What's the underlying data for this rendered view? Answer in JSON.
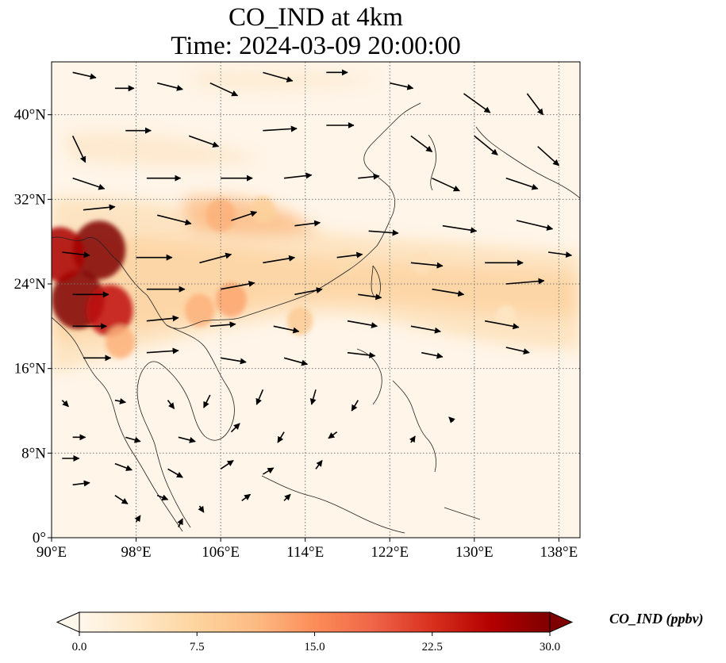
{
  "title": {
    "line1": "CO_IND at 4km",
    "line2": "Time: 2024-03-09 20:00:00"
  },
  "map": {
    "extent": {
      "lon": [
        90,
        140
      ],
      "lat": [
        0,
        45
      ]
    },
    "gridlines": true,
    "lon_ticks": [
      {
        "value": 90,
        "label": "90°E"
      },
      {
        "value": 98,
        "label": "98°E"
      },
      {
        "value": 106,
        "label": "106°E"
      },
      {
        "value": 114,
        "label": "114°E"
      },
      {
        "value": 122,
        "label": "122°E"
      },
      {
        "value": 130,
        "label": "130°E"
      },
      {
        "value": 138,
        "label": "138°E"
      }
    ],
    "lat_ticks": [
      {
        "value": 0,
        "label": "0°"
      },
      {
        "value": 8,
        "label": "8°N"
      },
      {
        "value": 16,
        "label": "16°N"
      },
      {
        "value": 24,
        "label": "24°N"
      },
      {
        "value": 32,
        "label": "32°N"
      },
      {
        "value": 40,
        "label": "40°N"
      }
    ],
    "field": "CO_IND",
    "hotspots": [
      {
        "lon": 94.5,
        "lat": 27.2,
        "value": 30
      },
      {
        "lon": 92.5,
        "lat": 22.5,
        "value": 30
      },
      {
        "lon": 95.5,
        "lat": 21.5,
        "value": 25
      },
      {
        "lon": 90.8,
        "lat": 26.8,
        "value": 27
      },
      {
        "lon": 96.5,
        "lat": 18.5,
        "value": 12
      },
      {
        "lon": 104,
        "lat": 21.5,
        "value": 12
      },
      {
        "lon": 107,
        "lat": 22.5,
        "value": 13
      },
      {
        "lon": 106,
        "lat": 30.5,
        "value": 12
      },
      {
        "lon": 110,
        "lat": 31,
        "value": 8
      },
      {
        "lon": 113.5,
        "lat": 20.5,
        "value": 9
      },
      {
        "lon": 118,
        "lat": 26,
        "value": 6
      },
      {
        "lon": 125,
        "lat": 26,
        "value": 5
      },
      {
        "lon": 133,
        "lat": 21,
        "value": 4
      }
    ],
    "wind": {
      "unit_degrees_per_unit": 1,
      "vectors": [
        {
          "lon": 92,
          "lat": 44,
          "u": 2.2,
          "v": -0.5
        },
        {
          "lon": 96,
          "lat": 42.5,
          "u": 1.8,
          "v": 0.0
        },
        {
          "lon": 100,
          "lat": 43,
          "u": 2.4,
          "v": -0.6
        },
        {
          "lon": 105,
          "lat": 43,
          "u": 2.6,
          "v": -1.2
        },
        {
          "lon": 110,
          "lat": 44,
          "u": 2.8,
          "v": -0.8
        },
        {
          "lon": 116,
          "lat": 44,
          "u": 2.0,
          "v": 0.0
        },
        {
          "lon": 122,
          "lat": 43,
          "u": 2.2,
          "v": -0.5
        },
        {
          "lon": 129,
          "lat": 42,
          "u": 2.5,
          "v": -1.8
        },
        {
          "lon": 135,
          "lat": 42,
          "u": 1.5,
          "v": -2.0
        },
        {
          "lon": 92,
          "lat": 38,
          "u": 1.2,
          "v": -2.5
        },
        {
          "lon": 97,
          "lat": 38.5,
          "u": 2.4,
          "v": 0.0
        },
        {
          "lon": 103,
          "lat": 38,
          "u": 2.8,
          "v": -1.0
        },
        {
          "lon": 110,
          "lat": 38.5,
          "u": 3.2,
          "v": 0.2
        },
        {
          "lon": 116,
          "lat": 39,
          "u": 2.6,
          "v": 0.0
        },
        {
          "lon": 124,
          "lat": 38,
          "u": 2.0,
          "v": -1.5
        },
        {
          "lon": 130,
          "lat": 38,
          "u": 2.2,
          "v": -1.8
        },
        {
          "lon": 136,
          "lat": 37,
          "u": 2.0,
          "v": -1.8
        },
        {
          "lon": 92,
          "lat": 34,
          "u": 3.0,
          "v": -1.0
        },
        {
          "lon": 99,
          "lat": 34,
          "u": 3.2,
          "v": 0.0
        },
        {
          "lon": 106,
          "lat": 34,
          "u": 3.0,
          "v": 0.0
        },
        {
          "lon": 112,
          "lat": 34,
          "u": 2.6,
          "v": 0.3
        },
        {
          "lon": 119,
          "lat": 34,
          "u": 2.0,
          "v": 0.2
        },
        {
          "lon": 126,
          "lat": 34,
          "u": 2.6,
          "v": -1.2
        },
        {
          "lon": 133,
          "lat": 34,
          "u": 3.0,
          "v": -1.0
        },
        {
          "lon": 93,
          "lat": 31,
          "u": 3.0,
          "v": 0.3
        },
        {
          "lon": 100,
          "lat": 30.5,
          "u": 3.2,
          "v": -0.8
        },
        {
          "lon": 107,
          "lat": 30,
          "u": 2.4,
          "v": 0.8
        },
        {
          "lon": 113,
          "lat": 29.5,
          "u": 2.4,
          "v": 0.3
        },
        {
          "lon": 120,
          "lat": 29,
          "u": 2.8,
          "v": -0.2
        },
        {
          "lon": 127,
          "lat": 29.5,
          "u": 3.2,
          "v": -0.5
        },
        {
          "lon": 134,
          "lat": 30,
          "u": 3.4,
          "v": -0.8
        },
        {
          "lon": 91,
          "lat": 27,
          "u": 2.6,
          "v": -0.3
        },
        {
          "lon": 98,
          "lat": 26.5,
          "u": 3.4,
          "v": 0.0
        },
        {
          "lon": 104,
          "lat": 26,
          "u": 3.0,
          "v": 0.8
        },
        {
          "lon": 110,
          "lat": 26,
          "u": 3.0,
          "v": 0.5
        },
        {
          "lon": 117,
          "lat": 26.5,
          "u": 2.4,
          "v": 0.3
        },
        {
          "lon": 124,
          "lat": 26,
          "u": 3.0,
          "v": -0.3
        },
        {
          "lon": 131,
          "lat": 26,
          "u": 3.6,
          "v": 0.0
        },
        {
          "lon": 137,
          "lat": 27,
          "u": 2.2,
          "v": -0.3
        },
        {
          "lon": 92,
          "lat": 23,
          "u": 3.4,
          "v": 0.0
        },
        {
          "lon": 99,
          "lat": 23.5,
          "u": 3.6,
          "v": 0.0
        },
        {
          "lon": 106,
          "lat": 23.5,
          "u": 3.2,
          "v": 0.6
        },
        {
          "lon": 113,
          "lat": 23,
          "u": 2.6,
          "v": 0.5
        },
        {
          "lon": 119,
          "lat": 23,
          "u": 2.2,
          "v": -0.3
        },
        {
          "lon": 126,
          "lat": 23.5,
          "u": 3.0,
          "v": -0.5
        },
        {
          "lon": 133,
          "lat": 24,
          "u": 3.6,
          "v": 0.3
        },
        {
          "lon": 92,
          "lat": 20,
          "u": 3.2,
          "v": 0.0
        },
        {
          "lon": 99,
          "lat": 20.5,
          "u": 3.0,
          "v": 0.3
        },
        {
          "lon": 105,
          "lat": 20,
          "u": 2.4,
          "v": 0.2
        },
        {
          "lon": 111,
          "lat": 20,
          "u": 2.4,
          "v": -0.5
        },
        {
          "lon": 118,
          "lat": 20.5,
          "u": 2.8,
          "v": -0.5
        },
        {
          "lon": 124,
          "lat": 20,
          "u": 2.8,
          "v": -0.5
        },
        {
          "lon": 131,
          "lat": 20.5,
          "u": 3.2,
          "v": -0.6
        },
        {
          "lon": 93,
          "lat": 17,
          "u": 2.6,
          "v": 0.0
        },
        {
          "lon": 99,
          "lat": 17.5,
          "u": 3.0,
          "v": 0.2
        },
        {
          "lon": 106,
          "lat": 17,
          "u": 2.4,
          "v": -0.4
        },
        {
          "lon": 112,
          "lat": 17,
          "u": 2.2,
          "v": -0.6
        },
        {
          "lon": 118,
          "lat": 17.5,
          "u": 2.6,
          "v": -0.3
        },
        {
          "lon": 125,
          "lat": 17.5,
          "u": 2.0,
          "v": -0.4
        },
        {
          "lon": 133,
          "lat": 18,
          "u": 2.2,
          "v": -0.5
        },
        {
          "lon": 91,
          "lat": 13,
          "u": 0.6,
          "v": -0.6
        },
        {
          "lon": 96,
          "lat": 13,
          "u": 1.0,
          "v": -0.2
        },
        {
          "lon": 101,
          "lat": 13,
          "u": 0.6,
          "v": -0.8
        },
        {
          "lon": 105,
          "lat": 13.5,
          "u": -0.6,
          "v": -1.2
        },
        {
          "lon": 110,
          "lat": 14,
          "u": -0.6,
          "v": -1.4
        },
        {
          "lon": 115,
          "lat": 14,
          "u": -0.4,
          "v": -1.4
        },
        {
          "lon": 119,
          "lat": 13,
          "u": -0.6,
          "v": -1.0
        },
        {
          "lon": 92,
          "lat": 9.5,
          "u": 1.2,
          "v": 0.0
        },
        {
          "lon": 97,
          "lat": 9.5,
          "u": 1.4,
          "v": -0.4
        },
        {
          "lon": 102,
          "lat": 9.5,
          "u": 1.6,
          "v": -0.4
        },
        {
          "lon": 107,
          "lat": 10,
          "u": 0.8,
          "v": 0.8
        },
        {
          "lon": 112,
          "lat": 10,
          "u": -0.6,
          "v": -1.0
        },
        {
          "lon": 117,
          "lat": 10,
          "u": -0.8,
          "v": -0.6
        },
        {
          "lon": 91,
          "lat": 7.5,
          "u": 1.6,
          "v": 0.0
        },
        {
          "lon": 96,
          "lat": 7,
          "u": 1.6,
          "v": -0.6
        },
        {
          "lon": 101,
          "lat": 6.5,
          "u": 1.4,
          "v": -0.8
        },
        {
          "lon": 106,
          "lat": 6.5,
          "u": 1.2,
          "v": 0.8
        },
        {
          "lon": 110,
          "lat": 6,
          "u": 1.0,
          "v": 0.6
        },
        {
          "lon": 115,
          "lat": 6.5,
          "u": 0.6,
          "v": 0.8
        },
        {
          "lon": 92,
          "lat": 5,
          "u": 1.6,
          "v": 0.2
        },
        {
          "lon": 96,
          "lat": 4,
          "u": 1.2,
          "v": -0.8
        },
        {
          "lon": 100,
          "lat": 4,
          "u": 1.0,
          "v": -0.4
        },
        {
          "lon": 104,
          "lat": 3,
          "u": 0.4,
          "v": -0.6
        },
        {
          "lon": 108,
          "lat": 3.5,
          "u": 0.8,
          "v": 0.6
        },
        {
          "lon": 112,
          "lat": 3.5,
          "u": 0.6,
          "v": 0.6
        },
        {
          "lon": 98,
          "lat": 1.5,
          "u": 0.4,
          "v": 0.6
        },
        {
          "lon": 102,
          "lat": 1.0,
          "u": 0.4,
          "v": 0.8
        },
        {
          "lon": 124,
          "lat": 9,
          "u": 0.4,
          "v": 0.6
        },
        {
          "lon": 128,
          "lat": 11,
          "u": -0.4,
          "v": 0.4
        }
      ]
    }
  },
  "colorbar": {
    "label": "CO_IND (ppbv)",
    "min": 0,
    "max": 30,
    "extend": "both",
    "colormap": "OrRd",
    "colors": [
      "#fff7ec",
      "#fee8c8",
      "#fdd49e",
      "#fdbb84",
      "#fc8d59",
      "#ef6548",
      "#d7301f",
      "#b30000",
      "#7f0000"
    ],
    "ticks": [
      {
        "value": 0,
        "label": "0.0"
      },
      {
        "value": 7.5,
        "label": "7.5"
      },
      {
        "value": 15,
        "label": "15.0"
      },
      {
        "value": 22.5,
        "label": "22.5"
      },
      {
        "value": 30,
        "label": "30.0"
      }
    ]
  }
}
